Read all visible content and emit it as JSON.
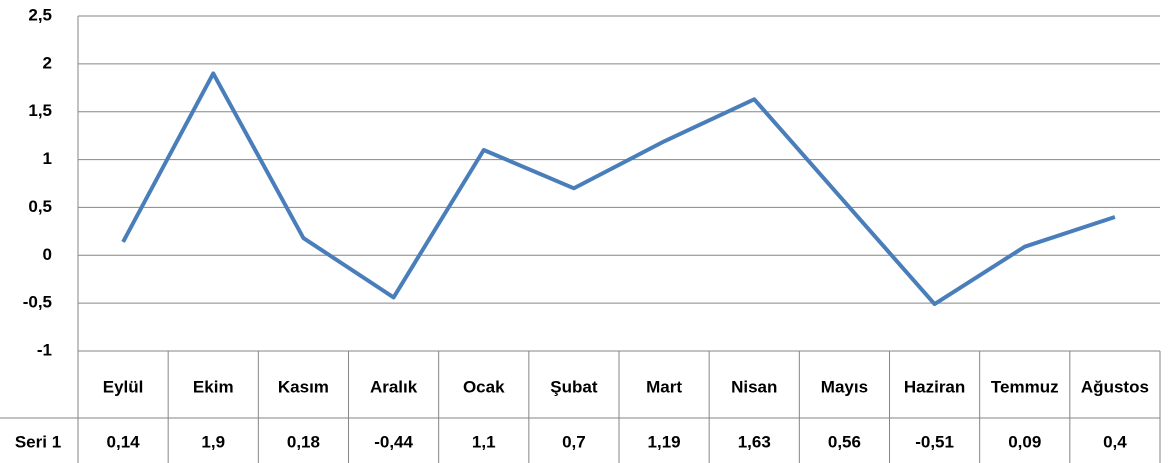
{
  "chart_data": {
    "type": "line",
    "categories": [
      "Eylül",
      "Ekim",
      "Kasım",
      "Aralık",
      "Ocak",
      "Şubat",
      "Mart",
      "Nisan",
      "Mayıs",
      "Haziran",
      "Temmuz",
      "Ağustos"
    ],
    "series": [
      {
        "name": "Seri 1",
        "color": "#4a7ebb",
        "values": [
          0.14,
          1.9,
          0.18,
          -0.44,
          1.1,
          0.7,
          1.19,
          1.63,
          0.56,
          -0.51,
          0.09,
          0.4
        ],
        "value_labels": [
          "0,14",
          "1,9",
          "0,18",
          "-0,44",
          "1,1",
          "0,7",
          "1,19",
          "1,63",
          "0,56",
          "-0,51",
          "0,09",
          "0,4"
        ]
      }
    ],
    "ylim": [
      -1,
      2.5
    ],
    "yticks": [
      -1,
      {
        "value": -0.5,
        "label": "-0,5"
      },
      0,
      {
        "value": 0.5,
        "label": "0,5"
      },
      1,
      {
        "value": 1.5,
        "label": "1,5"
      },
      2,
      {
        "value": 2.5,
        "label": "2,5"
      }
    ],
    "grid": true
  }
}
